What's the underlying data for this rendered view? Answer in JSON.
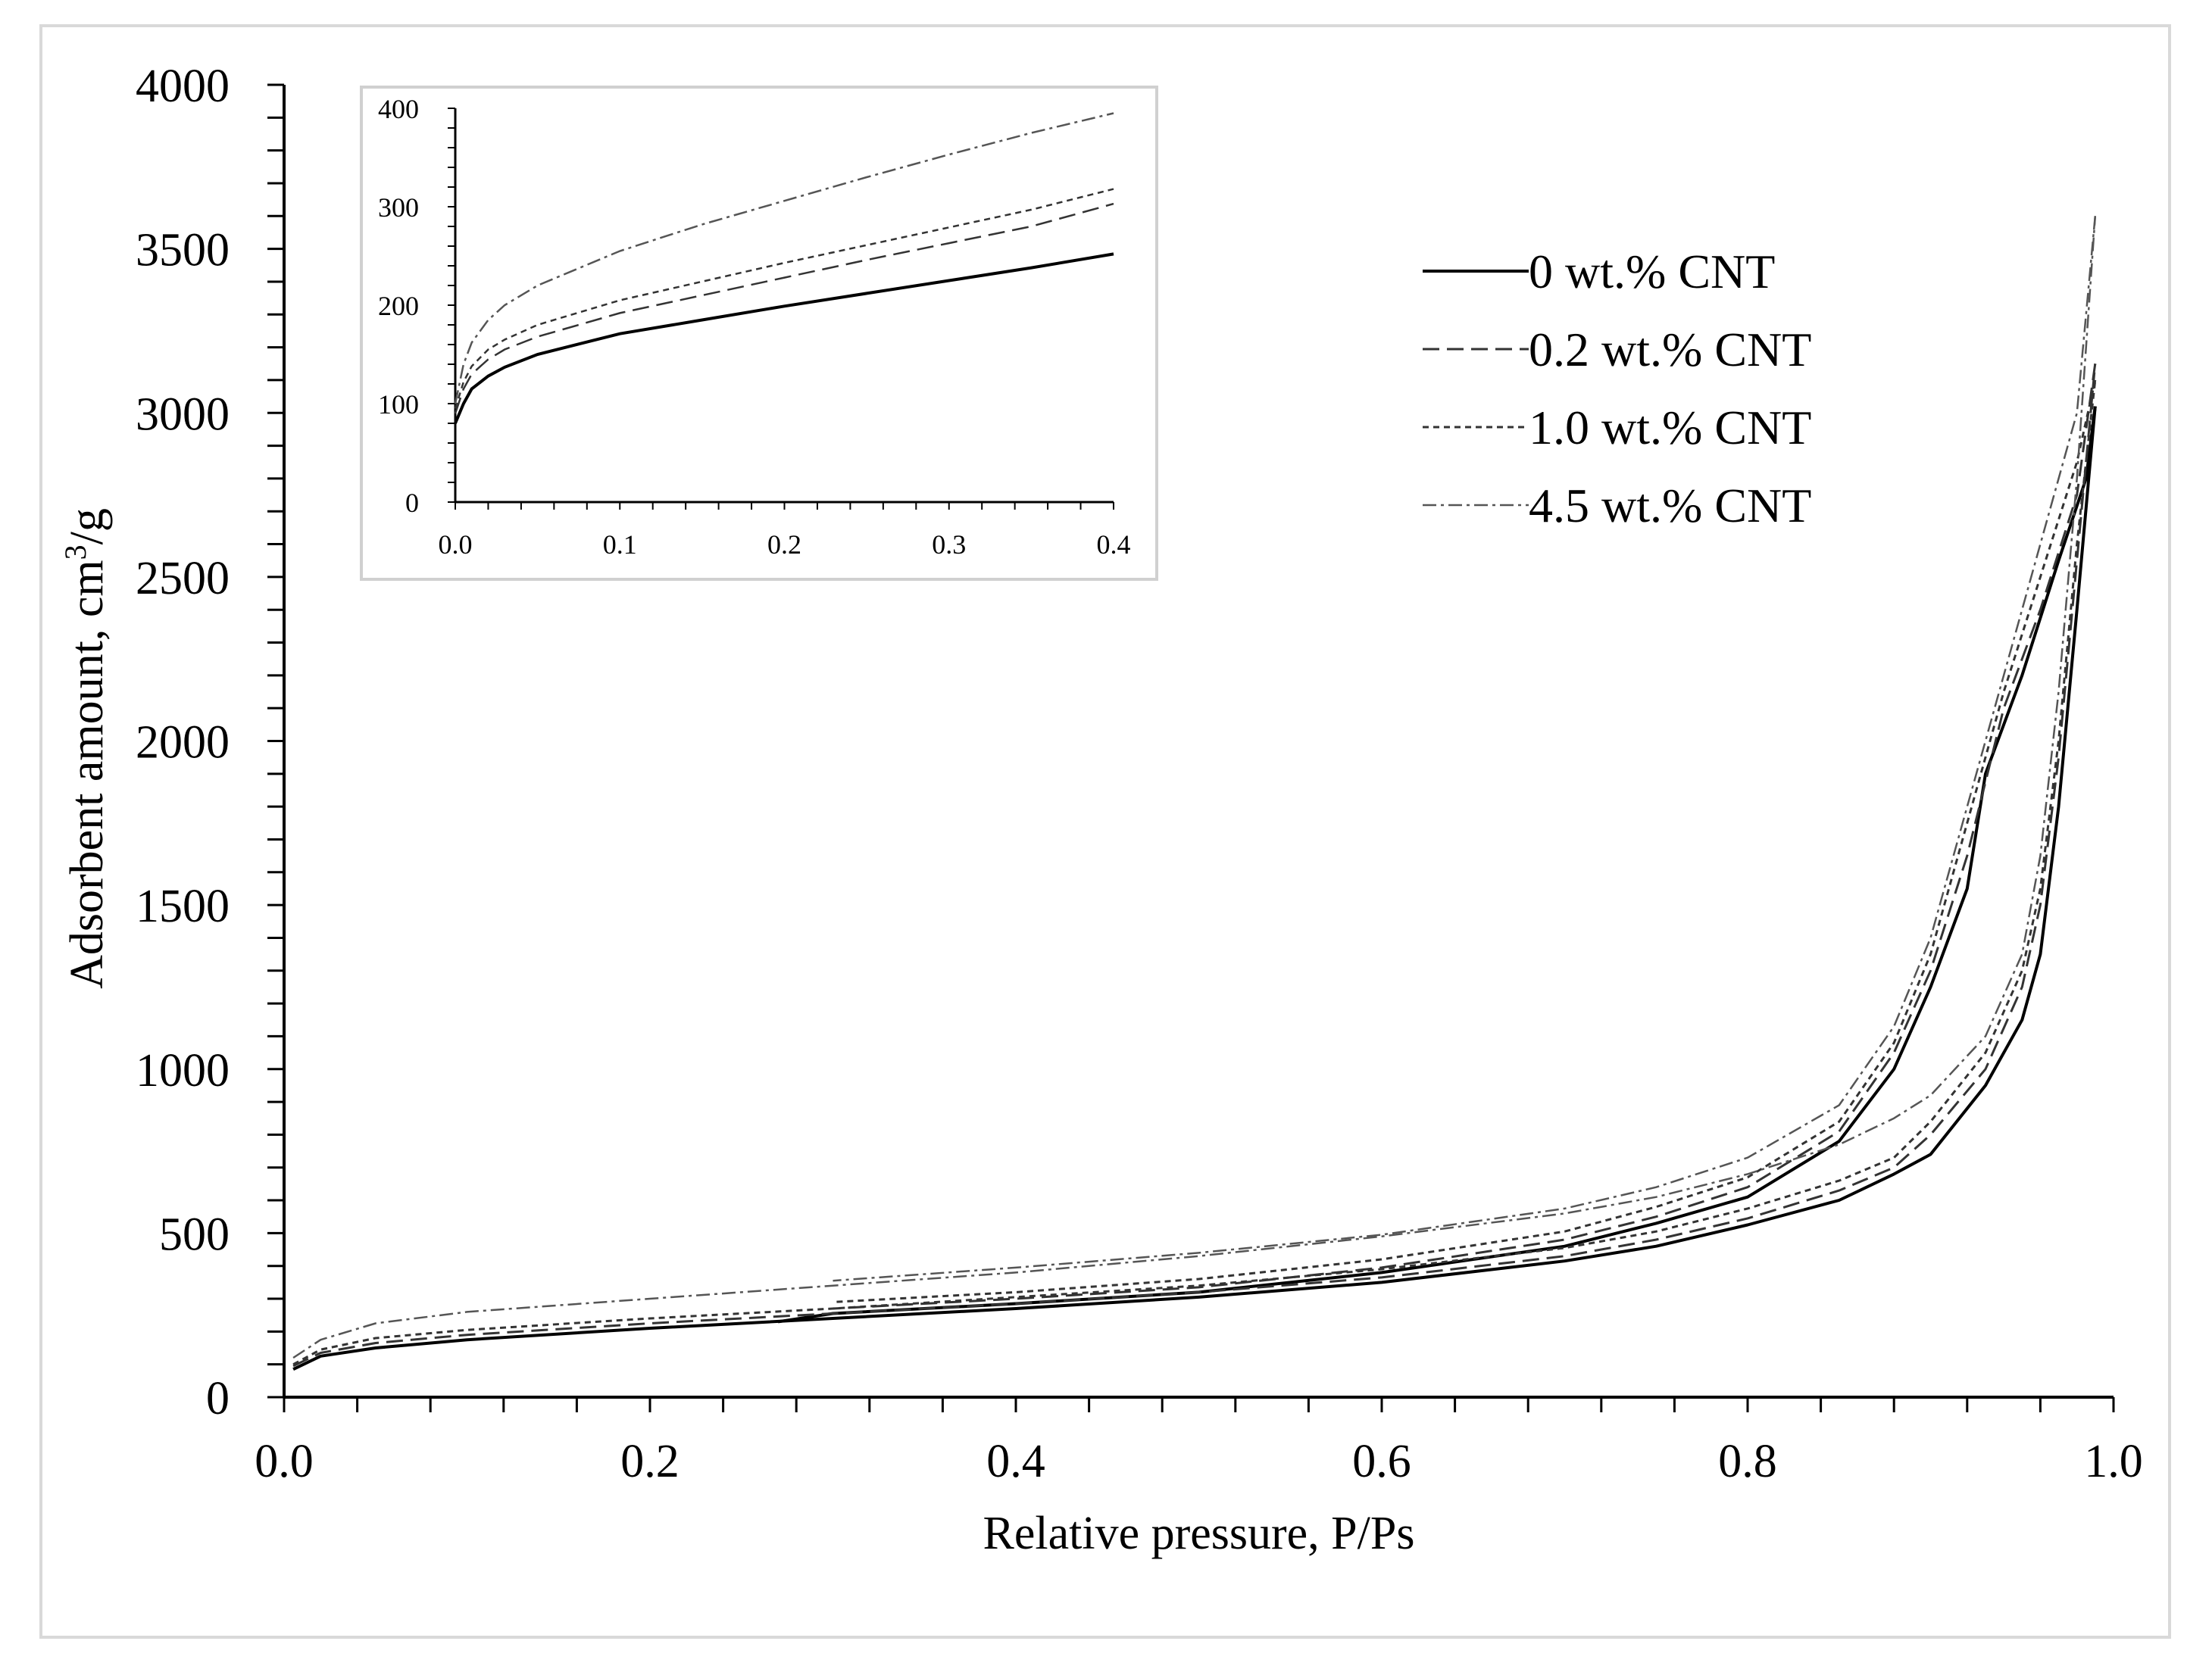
{
  "chart_data": [
    {
      "type": "line",
      "id": "main",
      "title": "",
      "xlabel": "Relative pressure, P/Ps",
      "ylabel_main": "Adsorbent amount, cm",
      "ylabel_sup": "3",
      "ylabel_tail": "/g",
      "xlim": [
        0.0,
        1.0
      ],
      "ylim": [
        0,
        4000
      ],
      "x_ticks": [
        0.0,
        0.2,
        0.4,
        0.6,
        0.8,
        1.0
      ],
      "x_tick_labels": [
        "0.0",
        "0.2",
        "0.4",
        "0.6",
        "0.8",
        "1.0"
      ],
      "y_ticks": [
        0,
        500,
        1000,
        1500,
        2000,
        2500,
        3000,
        3500,
        4000
      ],
      "y_tick_labels": [
        "0",
        "500",
        "1000",
        "1500",
        "2000",
        "2500",
        "3000",
        "3500",
        "4000"
      ],
      "grid": false,
      "legend_position": "top-right",
      "series": [
        {
          "name": "0 wt.% CNT",
          "style": "solid",
          "adsorption": [
            [
              0.005,
              85
            ],
            [
              0.02,
              125
            ],
            [
              0.05,
              150
            ],
            [
              0.1,
              175
            ],
            [
              0.2,
              210
            ],
            [
              0.3,
              240
            ],
            [
              0.4,
              270
            ],
            [
              0.5,
              305
            ],
            [
              0.6,
              350
            ],
            [
              0.7,
              415
            ],
            [
              0.75,
              460
            ],
            [
              0.8,
              525
            ],
            [
              0.85,
              600
            ],
            [
              0.88,
              680
            ],
            [
              0.9,
              740
            ],
            [
              0.93,
              950
            ],
            [
              0.95,
              1150
            ],
            [
              0.96,
              1350
            ],
            [
              0.97,
              1800
            ],
            [
              0.98,
              2400
            ],
            [
              0.99,
              3020
            ]
          ],
          "desorption": [
            [
              0.99,
              3020
            ],
            [
              0.985,
              2800
            ],
            [
              0.97,
              2550
            ],
            [
              0.95,
              2200
            ],
            [
              0.93,
              1900
            ],
            [
              0.92,
              1550
            ],
            [
              0.9,
              1250
            ],
            [
              0.88,
              1000
            ],
            [
              0.85,
              780
            ],
            [
              0.8,
              610
            ],
            [
              0.75,
              530
            ],
            [
              0.7,
              460
            ],
            [
              0.6,
              380
            ],
            [
              0.5,
              320
            ],
            [
              0.4,
              285
            ],
            [
              0.3,
              255
            ],
            [
              0.27,
              230
            ]
          ]
        },
        {
          "name": "0.2 wt.% CNT",
          "style": "dash",
          "adsorption": [
            [
              0.005,
              95
            ],
            [
              0.02,
              135
            ],
            [
              0.05,
              165
            ],
            [
              0.1,
              190
            ],
            [
              0.2,
              225
            ],
            [
              0.3,
              255
            ],
            [
              0.4,
              285
            ],
            [
              0.5,
              320
            ],
            [
              0.6,
              365
            ],
            [
              0.7,
              430
            ],
            [
              0.75,
              480
            ],
            [
              0.8,
              545
            ],
            [
              0.85,
              630
            ],
            [
              0.88,
              700
            ],
            [
              0.9,
              800
            ],
            [
              0.93,
              1000
            ],
            [
              0.95,
              1250
            ],
            [
              0.96,
              1500
            ],
            [
              0.97,
              1950
            ],
            [
              0.98,
              2550
            ],
            [
              0.99,
              3150
            ]
          ],
          "desorption": [
            [
              0.99,
              3150
            ],
            [
              0.98,
              2750
            ],
            [
              0.96,
              2400
            ],
            [
              0.94,
              2100
            ],
            [
              0.92,
              1650
            ],
            [
              0.9,
              1300
            ],
            [
              0.88,
              1050
            ],
            [
              0.85,
              810
            ],
            [
              0.8,
              640
            ],
            [
              0.75,
              550
            ],
            [
              0.7,
              480
            ],
            [
              0.6,
              395
            ],
            [
              0.5,
              335
            ],
            [
              0.4,
              300
            ],
            [
              0.3,
              270
            ]
          ]
        },
        {
          "name": "1.0 wt.% CNT",
          "style": "short-dash",
          "adsorption": [
            [
              0.005,
              100
            ],
            [
              0.02,
              145
            ],
            [
              0.05,
              180
            ],
            [
              0.1,
              205
            ],
            [
              0.2,
              240
            ],
            [
              0.3,
              270
            ],
            [
              0.4,
              305
            ],
            [
              0.5,
              340
            ],
            [
              0.6,
              390
            ],
            [
              0.7,
              455
            ],
            [
              0.75,
              505
            ],
            [
              0.8,
              575
            ],
            [
              0.85,
              660
            ],
            [
              0.88,
              730
            ],
            [
              0.9,
              840
            ],
            [
              0.93,
              1050
            ],
            [
              0.95,
              1300
            ],
            [
              0.96,
              1550
            ],
            [
              0.97,
              2000
            ],
            [
              0.98,
              2600
            ],
            [
              0.99,
              3100
            ]
          ],
          "desorption": [
            [
              0.99,
              3100
            ],
            [
              0.98,
              2850
            ],
            [
              0.96,
              2500
            ],
            [
              0.94,
              2150
            ],
            [
              0.92,
              1750
            ],
            [
              0.9,
              1350
            ],
            [
              0.88,
              1080
            ],
            [
              0.85,
              840
            ],
            [
              0.8,
              670
            ],
            [
              0.75,
              580
            ],
            [
              0.7,
              505
            ],
            [
              0.6,
              420
            ],
            [
              0.5,
              360
            ],
            [
              0.4,
              320
            ],
            [
              0.3,
              290
            ]
          ]
        },
        {
          "name": "4.5 wt.% CNT",
          "style": "dash-dot",
          "adsorption": [
            [
              0.005,
              120
            ],
            [
              0.02,
              175
            ],
            [
              0.05,
              225
            ],
            [
              0.1,
              260
            ],
            [
              0.2,
              300
            ],
            [
              0.3,
              340
            ],
            [
              0.4,
              380
            ],
            [
              0.5,
              430
            ],
            [
              0.6,
              490
            ],
            [
              0.7,
              560
            ],
            [
              0.75,
              610
            ],
            [
              0.8,
              680
            ],
            [
              0.85,
              770
            ],
            [
              0.88,
              850
            ],
            [
              0.9,
              920
            ],
            [
              0.93,
              1100
            ],
            [
              0.95,
              1350
            ],
            [
              0.96,
              1650
            ],
            [
              0.97,
              2150
            ],
            [
              0.98,
              2800
            ],
            [
              0.99,
              3600
            ]
          ],
          "desorption": [
            [
              0.99,
              3600
            ],
            [
              0.98,
              3000
            ],
            [
              0.96,
              2600
            ],
            [
              0.94,
              2200
            ],
            [
              0.92,
              1800
            ],
            [
              0.9,
              1400
            ],
            [
              0.88,
              1130
            ],
            [
              0.85,
              890
            ],
            [
              0.8,
              730
            ],
            [
              0.75,
              640
            ],
            [
              0.7,
              575
            ],
            [
              0.6,
              495
            ],
            [
              0.5,
              440
            ],
            [
              0.4,
              395
            ],
            [
              0.3,
              355
            ]
          ]
        }
      ]
    },
    {
      "type": "line",
      "id": "inset",
      "xlim": [
        0.0,
        0.4
      ],
      "ylim": [
        0,
        400
      ],
      "x_ticks": [
        0.0,
        0.1,
        0.2,
        0.3,
        0.4
      ],
      "x_tick_labels": [
        "0.0",
        "0.1",
        "0.2",
        "0.3",
        "0.4"
      ],
      "y_ticks": [
        0,
        100,
        200,
        300,
        400
      ],
      "y_tick_labels": [
        "0",
        "100",
        "200",
        "300",
        "400"
      ],
      "series": [
        {
          "name": "0 wt.% CNT",
          "style": "solid",
          "points": [
            [
              0.0,
              80
            ],
            [
              0.005,
              100
            ],
            [
              0.01,
              115
            ],
            [
              0.02,
              128
            ],
            [
              0.03,
              137
            ],
            [
              0.05,
              150
            ],
            [
              0.1,
              171
            ],
            [
              0.15,
              185
            ],
            [
              0.2,
              199
            ],
            [
              0.25,
              212
            ],
            [
              0.3,
              225
            ],
            [
              0.35,
              238
            ],
            [
              0.4,
              252
            ]
          ]
        },
        {
          "name": "0.2 wt.% CNT",
          "style": "dash",
          "points": [
            [
              0.0,
              90
            ],
            [
              0.005,
              115
            ],
            [
              0.01,
              130
            ],
            [
              0.02,
              145
            ],
            [
              0.03,
              155
            ],
            [
              0.05,
              168
            ],
            [
              0.1,
              192
            ],
            [
              0.15,
              210
            ],
            [
              0.2,
              228
            ],
            [
              0.25,
              246
            ],
            [
              0.3,
              263
            ],
            [
              0.35,
              280
            ],
            [
              0.4,
              303
            ]
          ]
        },
        {
          "name": "1.0 wt.% CNT",
          "style": "short-dash",
          "points": [
            [
              0.0,
              95
            ],
            [
              0.005,
              122
            ],
            [
              0.01,
              138
            ],
            [
              0.02,
              155
            ],
            [
              0.03,
              165
            ],
            [
              0.05,
              180
            ],
            [
              0.1,
              205
            ],
            [
              0.15,
              224
            ],
            [
              0.2,
              243
            ],
            [
              0.25,
              261
            ],
            [
              0.3,
              279
            ],
            [
              0.35,
              297
            ],
            [
              0.4,
              318
            ]
          ]
        },
        {
          "name": "4.5 wt.% CNT",
          "style": "dash-dot",
          "points": [
            [
              0.0,
              100
            ],
            [
              0.005,
              140
            ],
            [
              0.01,
              162
            ],
            [
              0.02,
              185
            ],
            [
              0.03,
              200
            ],
            [
              0.05,
              220
            ],
            [
              0.1,
              255
            ],
            [
              0.15,
              282
            ],
            [
              0.2,
              306
            ],
            [
              0.25,
              330
            ],
            [
              0.3,
              353
            ],
            [
              0.35,
              375
            ],
            [
              0.4,
              395
            ]
          ]
        }
      ]
    }
  ]
}
